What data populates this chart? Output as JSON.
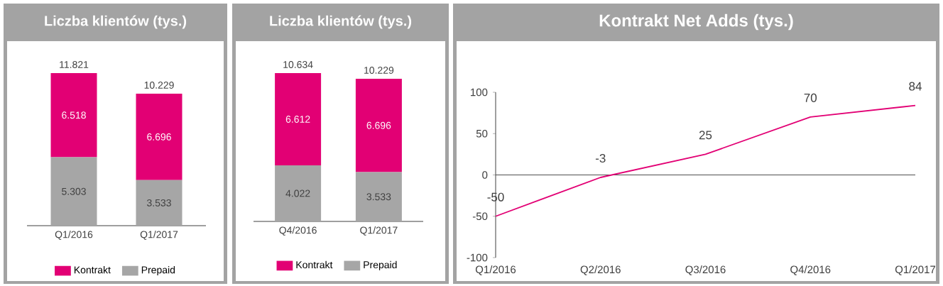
{
  "chart_data": [
    {
      "type": "bar",
      "title": "Liczba klientów (tys.)",
      "categories": [
        "Q1/2016",
        "Q1/2017"
      ],
      "stacked": true,
      "legend": "bottom",
      "totals": [
        "11.821",
        "10.229"
      ],
      "series": [
        {
          "name": "Prepaid",
          "color": "#a6a6a6",
          "values": [
            5303,
            3533
          ],
          "value_labels": [
            "5.303",
            "3.533"
          ]
        },
        {
          "name": "Kontrakt",
          "color": "#e20074",
          "values": [
            6518,
            6696
          ],
          "value_labels": [
            "6.518",
            "6.696"
          ]
        }
      ]
    },
    {
      "type": "bar",
      "title": "Liczba klientów (tys.)",
      "categories": [
        "Q4/2016",
        "Q1/2017"
      ],
      "stacked": true,
      "legend": "bottom",
      "totals": [
        "10.634",
        "10.229"
      ],
      "series": [
        {
          "name": "Prepaid",
          "color": "#a6a6a6",
          "values": [
            4022,
            3533
          ],
          "value_labels": [
            "4.022",
            "3.533"
          ]
        },
        {
          "name": "Kontrakt",
          "color": "#e20074",
          "values": [
            6612,
            6696
          ],
          "value_labels": [
            "6.612",
            "6.696"
          ]
        }
      ]
    },
    {
      "type": "line",
      "title": "Kontrakt Net Adds (tys.)",
      "categories": [
        "Q1/2016",
        "Q2/2016",
        "Q3/2016",
        "Q4/2016",
        "Q1/2017"
      ],
      "values": [
        -50,
        -3,
        25,
        70,
        84
      ],
      "color": "#e20074",
      "ylim": [
        -100,
        100
      ],
      "yticks": [
        -100,
        -50,
        0,
        50,
        100
      ],
      "data_labels": true,
      "ref_lines": [
        {
          "axis": "y",
          "value": 0,
          "color": "#505050"
        }
      ]
    }
  ]
}
